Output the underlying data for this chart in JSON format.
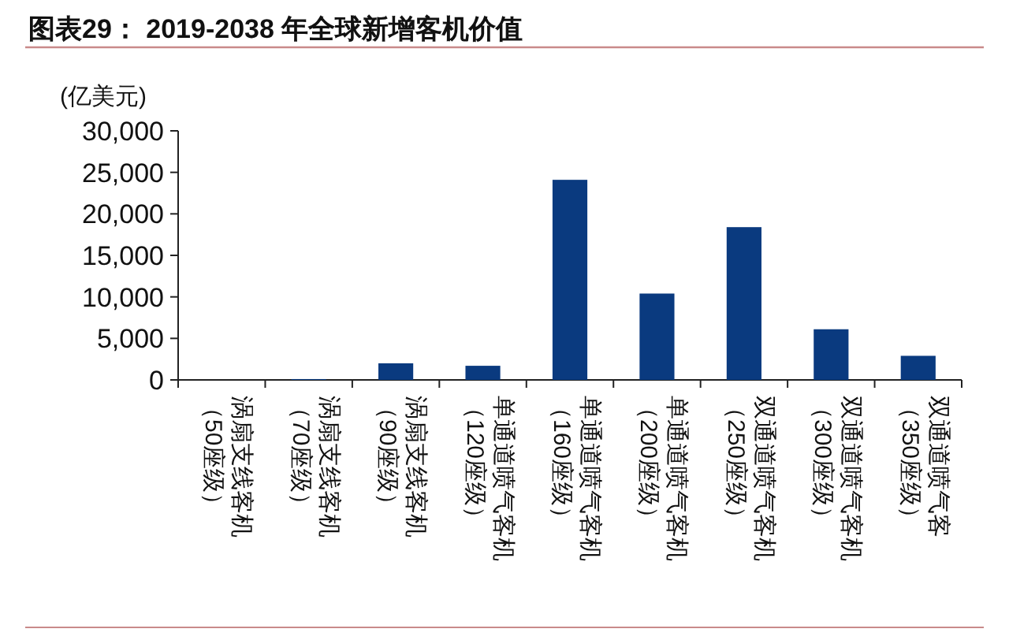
{
  "chart_data": {
    "type": "bar",
    "title": "图表29：  2019-2038 年全球新增客机价值",
    "ylabel": "(亿美元)",
    "categories": [
      "涡扇支线客机（50座级）",
      "涡扇支线客机（70座级）",
      "涡扇支线客机（90座级）",
      "单通道喷气客机（120座级）",
      "单通道喷气客机（160座级）",
      "单通道喷气客机（200座级）",
      "双通道喷气客机（250座级）",
      "双通道喷气客机（300座级）",
      "双通道喷气客（350座级）"
    ],
    "values": [
      0,
      100,
      2000,
      1700,
      24100,
      10400,
      18400,
      6100,
      2900
    ],
    "color": "#0a3a7f",
    "ylim": [
      0,
      30000
    ],
    "yticks": [
      {
        "value": 0,
        "label": "0"
      },
      {
        "value": 5000,
        "label": "5,000"
      },
      {
        "value": 10000,
        "label": "10,000"
      },
      {
        "value": 15000,
        "label": "15,000"
      },
      {
        "value": 20000,
        "label": "20,000"
      },
      {
        "value": 25000,
        "label": "25,000"
      },
      {
        "value": 30000,
        "label": "30,000"
      }
    ],
    "grid": false
  }
}
